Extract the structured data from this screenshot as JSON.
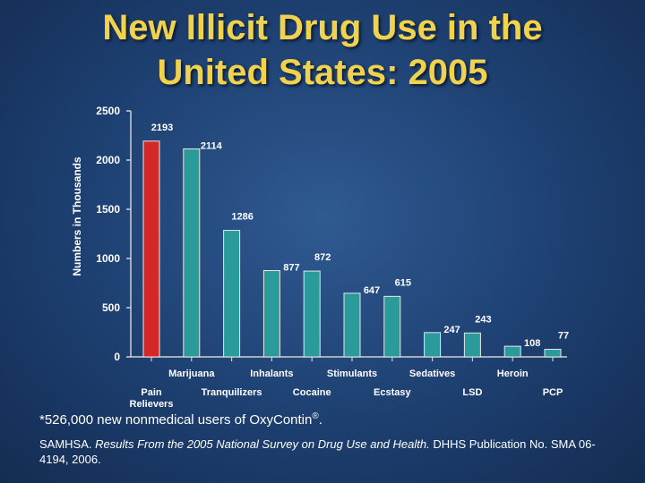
{
  "title": {
    "line1": "New Illicit Drug Use in the",
    "line2": "United States: 2005"
  },
  "chart_data": {
    "type": "bar",
    "title": "New Illicit Drug Use in the United States: 2005",
    "ylabel": "Numbers in Thousands",
    "xlabel": "",
    "ylim": [
      0,
      2500
    ],
    "yticks": [
      "0",
      "500",
      "1000",
      "1500",
      "2000",
      "2500"
    ],
    "grid": false,
    "categories": [
      "Pain Relievers",
      "Marijuana",
      "Tranquilizers",
      "Inhalants",
      "Cocaine",
      "Stimulants",
      "Ecstasy",
      "Sedatives",
      "LSD",
      "Heroin",
      "PCP"
    ],
    "values": [
      2193,
      2114,
      1286,
      877,
      872,
      647,
      615,
      247,
      243,
      108,
      77
    ],
    "value_labels": [
      "2193",
      "2114",
      "1286",
      "877",
      "872",
      "647",
      "615",
      "247",
      "243",
      "108",
      "77"
    ],
    "category_label_lines": [
      [
        "Pain",
        "Relievers"
      ],
      [
        "Marijuana"
      ],
      [
        "Tranquilizers"
      ],
      [
        "Inhalants"
      ],
      [
        "Cocaine"
      ],
      [
        "Stimulants"
      ],
      [
        "Ecstasy"
      ],
      [
        "Sedatives"
      ],
      [
        "LSD"
      ],
      [
        "Heroin"
      ],
      [
        "PCP"
      ]
    ],
    "highlight_index": 0,
    "colors": {
      "highlight": "#d42828",
      "bar": "#2a9a9a",
      "bar_edge": "#e8e8e8",
      "axis": "#d0d0d0",
      "tick_label": "#ffffff",
      "ylabel": "#ffffff"
    }
  },
  "footnote": {
    "text": "*526,000 new nonmedical users of OxyContin",
    "mark": "®",
    "end": "."
  },
  "source": {
    "lead": "SAMHSA. ",
    "italic": "Results From the 2005 National Survey on Drug Use and Health.",
    "rest": " DHHS Publication No. SMA 06-4194, 2006."
  }
}
